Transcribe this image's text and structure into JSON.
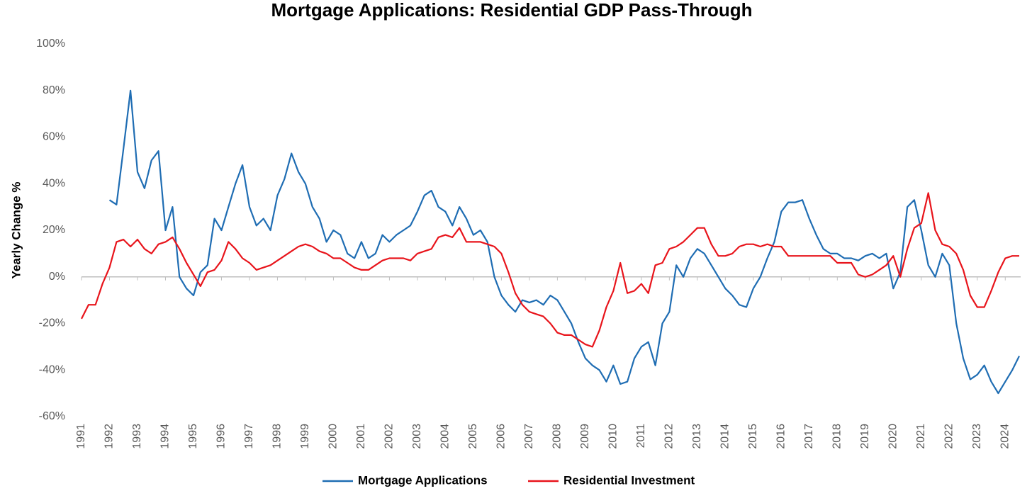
{
  "chart_data": {
    "type": "line",
    "title": "Mortgage Applications: Residential GDP Pass-Through",
    "y_label": "Yearly Change %",
    "legend": "bottom",
    "grid": false,
    "xlim": [
      1991,
      2024.55
    ],
    "xticks": [
      1991,
      1992,
      1993,
      1994,
      1995,
      1996,
      1997,
      1998,
      1999,
      2000,
      2001,
      2002,
      2003,
      2004,
      2005,
      2006,
      2007,
      2008,
      2009,
      2010,
      2011,
      2012,
      2013,
      2014,
      2015,
      2016,
      2017,
      2018,
      2019,
      2020,
      2021,
      2022,
      2023,
      2024
    ],
    "ylim": [
      -60,
      100
    ],
    "yticks": [
      {
        "value": -60,
        "label": "-60%"
      },
      {
        "value": -40,
        "label": "-40%"
      },
      {
        "value": -20,
        "label": "-20%"
      },
      {
        "value": 0,
        "label": "0%"
      },
      {
        "value": 20,
        "label": "20%"
      },
      {
        "value": 40,
        "label": "40%"
      },
      {
        "value": 60,
        "label": "60%"
      },
      {
        "value": 80,
        "label": "80%"
      },
      {
        "value": 100,
        "label": "100%"
      }
    ],
    "x": [
      1991,
      1991.25,
      1991.5,
      1991.75,
      1992,
      1992.25,
      1992.5,
      1992.75,
      1993,
      1993.25,
      1993.5,
      1993.75,
      1994,
      1994.25,
      1994.5,
      1994.75,
      1995,
      1995.25,
      1995.5,
      1995.75,
      1996,
      1996.25,
      1996.5,
      1996.75,
      1997,
      1997.25,
      1997.5,
      1997.75,
      1998,
      1998.25,
      1998.5,
      1998.75,
      1999,
      1999.25,
      1999.5,
      1999.75,
      2000,
      2000.25,
      2000.5,
      2000.75,
      2001,
      2001.25,
      2001.5,
      2001.75,
      2002,
      2002.25,
      2002.5,
      2002.75,
      2003,
      2003.25,
      2003.5,
      2003.75,
      2004,
      2004.25,
      2004.5,
      2004.75,
      2005,
      2005.25,
      2005.5,
      2005.75,
      2006,
      2006.25,
      2006.5,
      2006.75,
      2007,
      2007.25,
      2007.5,
      2007.75,
      2008,
      2008.25,
      2008.5,
      2008.75,
      2009,
      2009.25,
      2009.5,
      2009.75,
      2010,
      2010.25,
      2010.5,
      2010.75,
      2011,
      2011.25,
      2011.5,
      2011.75,
      2012,
      2012.25,
      2012.5,
      2012.75,
      2013,
      2013.25,
      2013.5,
      2013.75,
      2014,
      2014.25,
      2014.5,
      2014.75,
      2015,
      2015.25,
      2015.5,
      2015.75,
      2016,
      2016.25,
      2016.5,
      2016.75,
      2017,
      2017.25,
      2017.5,
      2017.75,
      2018,
      2018.25,
      2018.5,
      2018.75,
      2019,
      2019.25,
      2019.5,
      2019.75,
      2020,
      2020.25,
      2020.5,
      2020.75,
      2021,
      2021.25,
      2021.5,
      2021.75,
      2022,
      2022.25,
      2022.5,
      2022.75,
      2023,
      2023.25,
      2023.5,
      2023.75,
      2024,
      2024.25,
      2024.5
    ],
    "series": [
      {
        "name": "Mortgage Applications",
        "color": "#1f6db3",
        "values": [
          null,
          null,
          null,
          null,
          33,
          31,
          55,
          80,
          45,
          38,
          50,
          54,
          20,
          30,
          0,
          -5,
          -8,
          2,
          5,
          25,
          20,
          30,
          40,
          48,
          30,
          22,
          25,
          20,
          35,
          42,
          53,
          45,
          40,
          30,
          25,
          15,
          20,
          18,
          10,
          8,
          15,
          8,
          10,
          18,
          15,
          18,
          20,
          22,
          28,
          35,
          37,
          30,
          28,
          22,
          30,
          25,
          18,
          20,
          15,
          0,
          -8,
          -12,
          -15,
          -10,
          -11,
          -10,
          -12,
          -8,
          -10,
          -15,
          -20,
          -28,
          -35,
          -38,
          -40,
          -45,
          -38,
          -46,
          -45,
          -35,
          -30,
          -28,
          -38,
          -20,
          -15,
          5,
          0,
          8,
          12,
          10,
          5,
          0,
          -5,
          -8,
          -12,
          -13,
          -5,
          0,
          8,
          15,
          28,
          32,
          32,
          33,
          25,
          18,
          12,
          10,
          10,
          8,
          8,
          7,
          9,
          10,
          8,
          10,
          -5,
          2,
          30,
          33,
          20,
          5,
          0,
          10,
          5,
          -20,
          -35,
          -44,
          -42,
          -38,
          -45,
          -50,
          -45,
          -40,
          -34
        ]
      },
      {
        "name": "Residential Investment",
        "color": "#e8141b",
        "values": [
          -18,
          -12,
          -12,
          -3,
          4,
          15,
          16,
          13,
          16,
          12,
          10,
          14,
          15,
          17,
          12,
          6,
          1,
          -4,
          2,
          3,
          7,
          15,
          12,
          8,
          6,
          3,
          4,
          5,
          7,
          9,
          11,
          13,
          14,
          13,
          11,
          10,
          8,
          8,
          6,
          4,
          3,
          3,
          5,
          7,
          8,
          8,
          8,
          7,
          10,
          11,
          12,
          17,
          18,
          17,
          21,
          15,
          15,
          15,
          14,
          13,
          10,
          2,
          -7,
          -12,
          -15,
          -16,
          -17,
          -20,
          -24,
          -25,
          -25,
          -27,
          -29,
          -30,
          -23,
          -13,
          -6,
          6,
          -7,
          -6,
          -3,
          -7,
          5,
          6,
          12,
          13,
          15,
          18,
          21,
          21,
          14,
          9,
          9,
          10,
          13,
          14,
          14,
          13,
          14,
          13,
          13,
          9,
          9,
          9,
          9,
          9,
          9,
          9,
          6,
          6,
          6,
          1,
          0,
          1,
          3,
          5,
          9,
          0,
          12,
          21,
          23,
          36,
          20,
          14,
          13,
          10,
          3,
          -8,
          -13,
          -13,
          -6,
          2,
          8,
          9,
          9
        ]
      }
    ]
  }
}
